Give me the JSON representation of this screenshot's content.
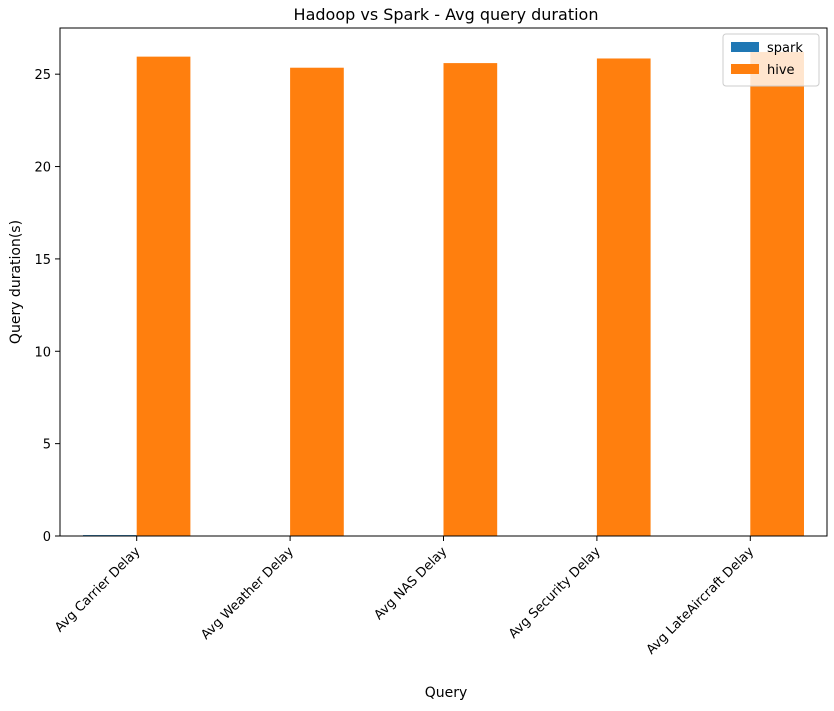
{
  "chart_data": {
    "type": "bar",
    "title": "Hadoop vs Spark - Avg query duration",
    "xlabel": "Query",
    "ylabel": "Query duration(s)",
    "categories": [
      "Avg Carrier Delay",
      "Avg Weather Delay",
      "Avg NAS Delay",
      "Avg Security Delay",
      "Avg LateAircraft Delay"
    ],
    "series": [
      {
        "name": "spark",
        "color": "#1f77b4",
        "values": [
          0.05,
          0.0,
          0.0,
          0.0,
          0.0
        ]
      },
      {
        "name": "hive",
        "color": "#ff7f0e",
        "values": [
          25.95,
          25.35,
          25.6,
          25.85,
          26.2
        ]
      }
    ],
    "ylim": [
      0,
      27.5
    ],
    "yticks": [
      0,
      5,
      10,
      15,
      20,
      25
    ],
    "ytick_labels": [
      "0",
      "5",
      "10",
      "15",
      "20",
      "25"
    ],
    "grid": false,
    "legend_position": "top-right"
  }
}
